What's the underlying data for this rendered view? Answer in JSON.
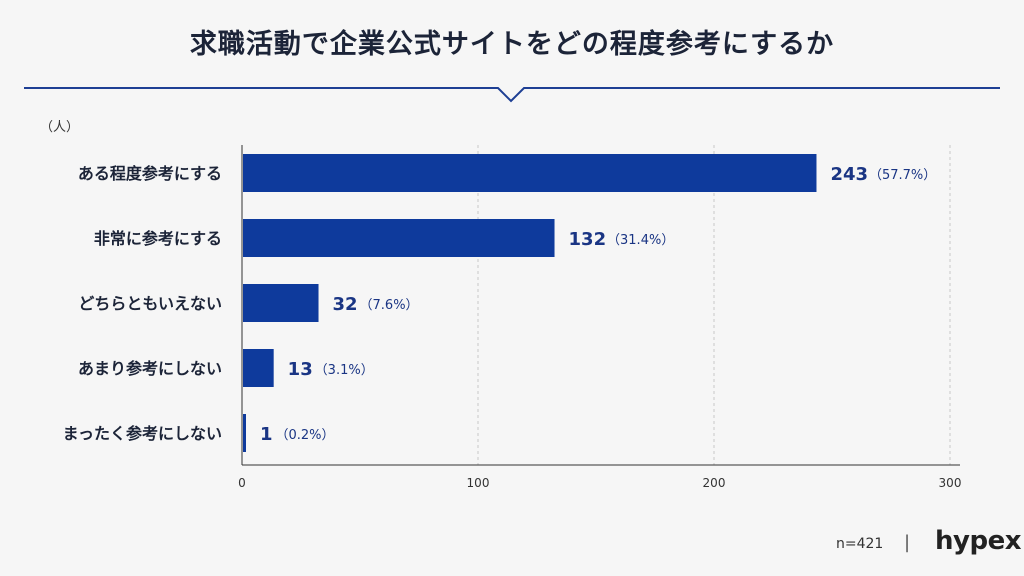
{
  "title": "求職活動で企業公式サイトをどの程度参考にするか",
  "footer": {
    "n_label": "n=421",
    "separator": "|",
    "brand": "hypex"
  },
  "colors": {
    "bar": "#0e3a9c",
    "divider": "#1e3f94",
    "label_value": "#1a3584",
    "grid": "#c8c8c8"
  },
  "chart_data": {
    "type": "bar",
    "orientation": "horizontal",
    "unit_label": "（人）",
    "categories": [
      "ある程度参考にする",
      "非常に参考にする",
      "どちらともいえない",
      "あまり参考にしない",
      "まったく参考にしない"
    ],
    "values": [
      243,
      132,
      32,
      13,
      1
    ],
    "percent_labels": [
      "（57.7%）",
      "（31.4%）",
      "（7.6%）",
      "（3.1%）",
      "（0.2%）"
    ],
    "xlim": [
      0,
      300
    ],
    "xticks": [
      0,
      100,
      200,
      300
    ],
    "grid": true,
    "xlabel": "",
    "ylabel": ""
  }
}
